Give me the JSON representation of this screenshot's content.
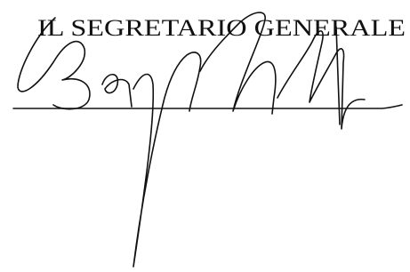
{
  "title": "IL SEGRETARIO GENERALE"
}
